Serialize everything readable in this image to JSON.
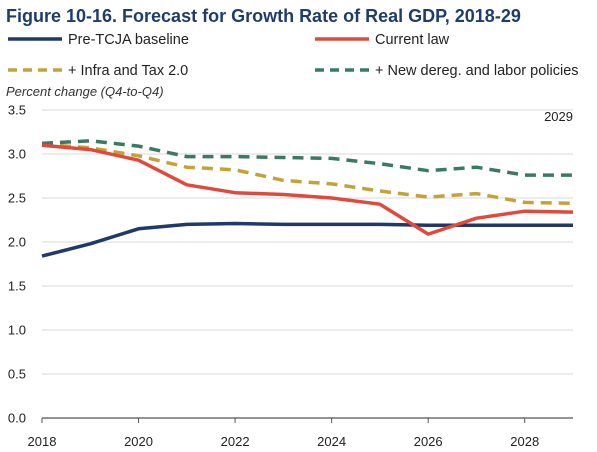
{
  "chart_data": {
    "type": "line",
    "title": "Figure 10-16. Forecast for Growth Rate of Real GDP, 2018-29",
    "ylabel": "Percent change (Q4-to-Q4)",
    "xlabel": "",
    "annotation": "2029",
    "x": [
      2018,
      2019,
      2020,
      2021,
      2022,
      2023,
      2024,
      2025,
      2026,
      2027,
      2028,
      2029
    ],
    "xticks": [
      "2018",
      "2020",
      "2022",
      "2024",
      "2026",
      "2028"
    ],
    "xtick_values": [
      2018,
      2020,
      2022,
      2024,
      2026,
      2028
    ],
    "xlim": [
      2018,
      2029
    ],
    "yticks": [
      "0.0",
      "0.5",
      "1.0",
      "1.5",
      "2.0",
      "2.5",
      "3.0",
      "3.5"
    ],
    "ytick_values": [
      0.0,
      0.5,
      1.0,
      1.5,
      2.0,
      2.5,
      3.0,
      3.5
    ],
    "ylim": [
      0.0,
      3.5
    ],
    "grid": "horizontal",
    "legend_position": "top",
    "series": [
      {
        "name": "Pre-TCJA baseline",
        "color": "#1f3a68",
        "style": "solid",
        "values": [
          1.84,
          1.98,
          2.15,
          2.2,
          2.21,
          2.2,
          2.2,
          2.2,
          2.19,
          2.19,
          2.19,
          2.19
        ]
      },
      {
        "name": "Current law",
        "color": "#e04a3c",
        "style": "solid",
        "values": [
          3.1,
          3.05,
          2.93,
          2.65,
          2.56,
          2.54,
          2.5,
          2.43,
          2.09,
          2.27,
          2.35,
          2.34
        ]
      },
      {
        "name": "+ Infra and Tax 2.0",
        "color": "#c4a23a",
        "style": "dashed",
        "values": [
          3.11,
          3.07,
          2.98,
          2.85,
          2.82,
          2.7,
          2.66,
          2.58,
          2.51,
          2.55,
          2.45,
          2.44
        ]
      },
      {
        "name": "+ New dereg. and labor policies",
        "color": "#3a7a63",
        "style": "dashed",
        "values": [
          3.12,
          3.15,
          3.09,
          2.97,
          2.97,
          2.96,
          2.95,
          2.89,
          2.81,
          2.85,
          2.76,
          2.76
        ]
      }
    ]
  }
}
